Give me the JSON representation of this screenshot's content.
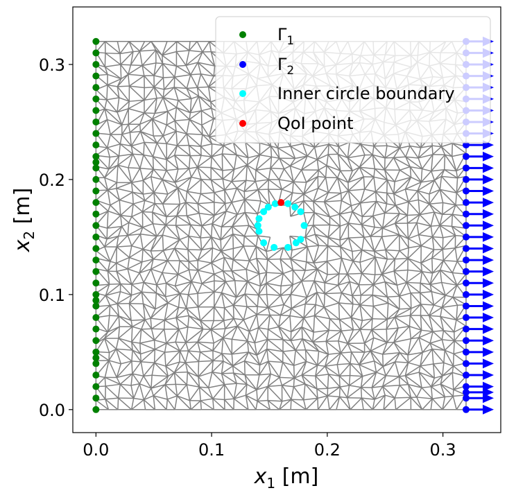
{
  "chart_data": {
    "type": "scatter",
    "title": "",
    "xlabel_main": "x",
    "xlabel_sub": "1",
    "xlabel_unit": " [m]",
    "ylabel_main": "x",
    "ylabel_sub": "2",
    "ylabel_unit": " [m]",
    "xlim": [
      -0.02,
      0.35
    ],
    "ylim": [
      -0.02,
      0.35
    ],
    "xticks": [
      0.0,
      0.1,
      0.2,
      0.3
    ],
    "xtick_labels": [
      "0.0",
      "0.1",
      "0.2",
      "0.3"
    ],
    "yticks": [
      0.0,
      0.1,
      0.2,
      0.3
    ],
    "ytick_labels": [
      "0.0",
      "0.1",
      "0.2",
      "0.3"
    ],
    "domain": {
      "x_min": 0.0,
      "x_max": 0.32,
      "y_min": 0.0,
      "y_max": 0.32
    },
    "mesh_color": "#808080",
    "legend_position": "top-right",
    "legend": [
      {
        "key": "gamma1",
        "main": "Γ",
        "sub": "1",
        "color": "#008000"
      },
      {
        "key": "gamma2",
        "main": "Γ",
        "sub": "2",
        "color": "#0000ff"
      },
      {
        "key": "inner",
        "main": "Inner circle boundary",
        "sub": "",
        "color": "#00ffff"
      },
      {
        "key": "qoi",
        "main": "QoI point",
        "sub": "",
        "color": "#ff0000"
      }
    ],
    "series": [
      {
        "key": "gamma1",
        "color": "#008000",
        "points": [
          [
            0,
            0
          ],
          [
            0,
            0.01
          ],
          [
            0,
            0.02
          ],
          [
            0,
            0.03
          ],
          [
            0,
            0.04
          ],
          [
            0,
            0.045
          ],
          [
            0,
            0.05
          ],
          [
            0,
            0.06
          ],
          [
            0,
            0.07
          ],
          [
            0,
            0.08
          ],
          [
            0,
            0.09
          ],
          [
            0,
            0.095
          ],
          [
            0,
            0.1
          ],
          [
            0,
            0.11
          ],
          [
            0,
            0.12
          ],
          [
            0,
            0.13
          ],
          [
            0,
            0.14
          ],
          [
            0,
            0.15
          ],
          [
            0,
            0.16
          ],
          [
            0,
            0.17
          ],
          [
            0,
            0.18
          ],
          [
            0,
            0.19
          ],
          [
            0,
            0.2
          ],
          [
            0,
            0.21
          ],
          [
            0,
            0.215
          ],
          [
            0,
            0.22
          ],
          [
            0,
            0.23
          ],
          [
            0,
            0.24
          ],
          [
            0,
            0.25
          ],
          [
            0,
            0.26
          ],
          [
            0,
            0.27
          ],
          [
            0,
            0.28
          ],
          [
            0,
            0.29
          ],
          [
            0,
            0.3
          ],
          [
            0,
            0.31
          ],
          [
            0,
            0.32
          ]
        ]
      },
      {
        "key": "gamma2",
        "color": "#0000ff",
        "arrow_length": 0.024,
        "points": [
          [
            0.32,
            0
          ],
          [
            0.32,
            0.01
          ],
          [
            0.32,
            0.015
          ],
          [
            0.32,
            0.02
          ],
          [
            0.32,
            0.03
          ],
          [
            0.32,
            0.04
          ],
          [
            0.32,
            0.05
          ],
          [
            0.32,
            0.06
          ],
          [
            0.32,
            0.07
          ],
          [
            0.32,
            0.08
          ],
          [
            0.32,
            0.09
          ],
          [
            0.32,
            0.1
          ],
          [
            0.32,
            0.11
          ],
          [
            0.32,
            0.12
          ],
          [
            0.32,
            0.13
          ],
          [
            0.32,
            0.14
          ],
          [
            0.32,
            0.15
          ],
          [
            0.32,
            0.16
          ],
          [
            0.32,
            0.17
          ],
          [
            0.32,
            0.18
          ],
          [
            0.32,
            0.19
          ],
          [
            0.32,
            0.2
          ],
          [
            0.32,
            0.21
          ],
          [
            0.32,
            0.22
          ],
          [
            0.32,
            0.23
          ],
          [
            0.32,
            0.24
          ],
          [
            0.32,
            0.25
          ],
          [
            0.32,
            0.26
          ],
          [
            0.32,
            0.27
          ],
          [
            0.32,
            0.28
          ],
          [
            0.32,
            0.29
          ],
          [
            0.32,
            0.3
          ],
          [
            0.32,
            0.31
          ],
          [
            0.32,
            0.32
          ]
        ]
      },
      {
        "key": "inner",
        "color": "#00ffff",
        "points": [
          [
            0.166,
            0.179
          ],
          [
            0.172,
            0.176
          ],
          [
            0.177,
            0.172
          ],
          [
            0.18,
            0.16
          ],
          [
            0.177,
            0.148
          ],
          [
            0.173,
            0.145
          ],
          [
            0.166,
            0.141
          ],
          [
            0.154,
            0.141
          ],
          [
            0.145,
            0.145
          ],
          [
            0.141,
            0.155
          ],
          [
            0.14,
            0.16
          ],
          [
            0.141,
            0.166
          ],
          [
            0.145,
            0.172
          ],
          [
            0.149,
            0.176
          ],
          [
            0.155,
            0.179
          ]
        ]
      },
      {
        "key": "qoi",
        "color": "#ff0000",
        "points": [
          [
            0.16,
            0.18
          ]
        ]
      }
    ]
  }
}
